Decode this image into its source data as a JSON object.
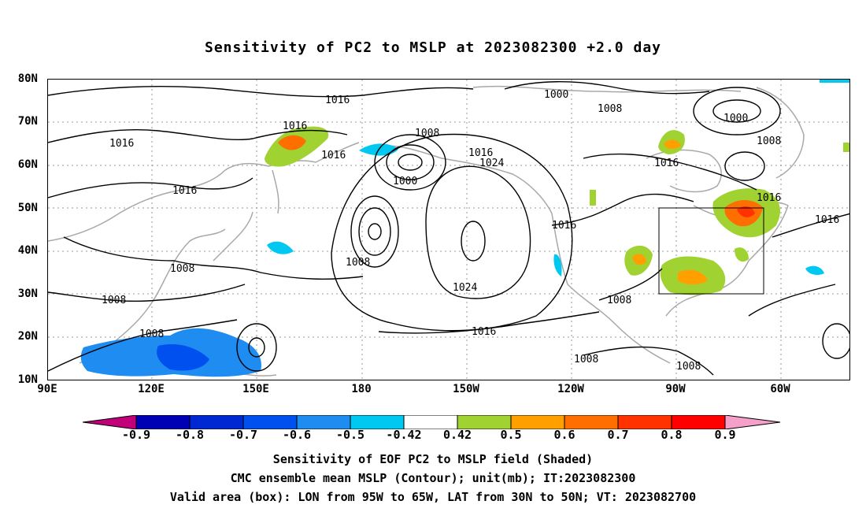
{
  "title": "Sensitivity of PC2 to MSLP at 2023082300 +2.0 day",
  "axes": {
    "lat_labels": [
      "80N",
      "70N",
      "60N",
      "50N",
      "40N",
      "30N",
      "20N",
      "10N"
    ],
    "lon_labels": [
      "90E",
      "120E",
      "150E",
      "180",
      "150W",
      "120W",
      "90W",
      "60W"
    ]
  },
  "contour_labels": [
    "1016",
    "1000",
    "1008",
    "1000",
    "1008",
    "1016",
    "1016",
    "1016",
    "1008",
    "1016",
    "1024",
    "1016",
    "1016",
    "1000",
    "1016",
    "1016",
    "1008",
    "1008",
    "1008",
    "1024",
    "1008",
    "1016",
    "1008",
    "1008",
    "1008",
    "1016"
  ],
  "colorbar": {
    "labels": [
      "-0.9",
      "-0.8",
      "-0.7",
      "-0.6",
      "-0.5",
      "-0.42",
      "0.42",
      "0.5",
      "0.6",
      "0.7",
      "0.8",
      "0.9"
    ],
    "colors": [
      "#c2007a",
      "#0000b4",
      "#0028d2",
      "#0050f0",
      "#1e8cf0",
      "#00c8f0",
      "#ffffff",
      "#a0d232",
      "#ffa000",
      "#ff6e00",
      "#ff3200",
      "#ff0000",
      "#f5a0c8"
    ]
  },
  "footer": {
    "line1": "Sensitivity of EOF PC2 to MSLP field (Shaded)",
    "line2": "CMC ensemble mean MSLP (Contour); unit(mb); IT:2023082300",
    "line3": "Valid area (box): LON from 95W to 65W, LAT from 30N to 50N; VT: 2023082700"
  }
}
